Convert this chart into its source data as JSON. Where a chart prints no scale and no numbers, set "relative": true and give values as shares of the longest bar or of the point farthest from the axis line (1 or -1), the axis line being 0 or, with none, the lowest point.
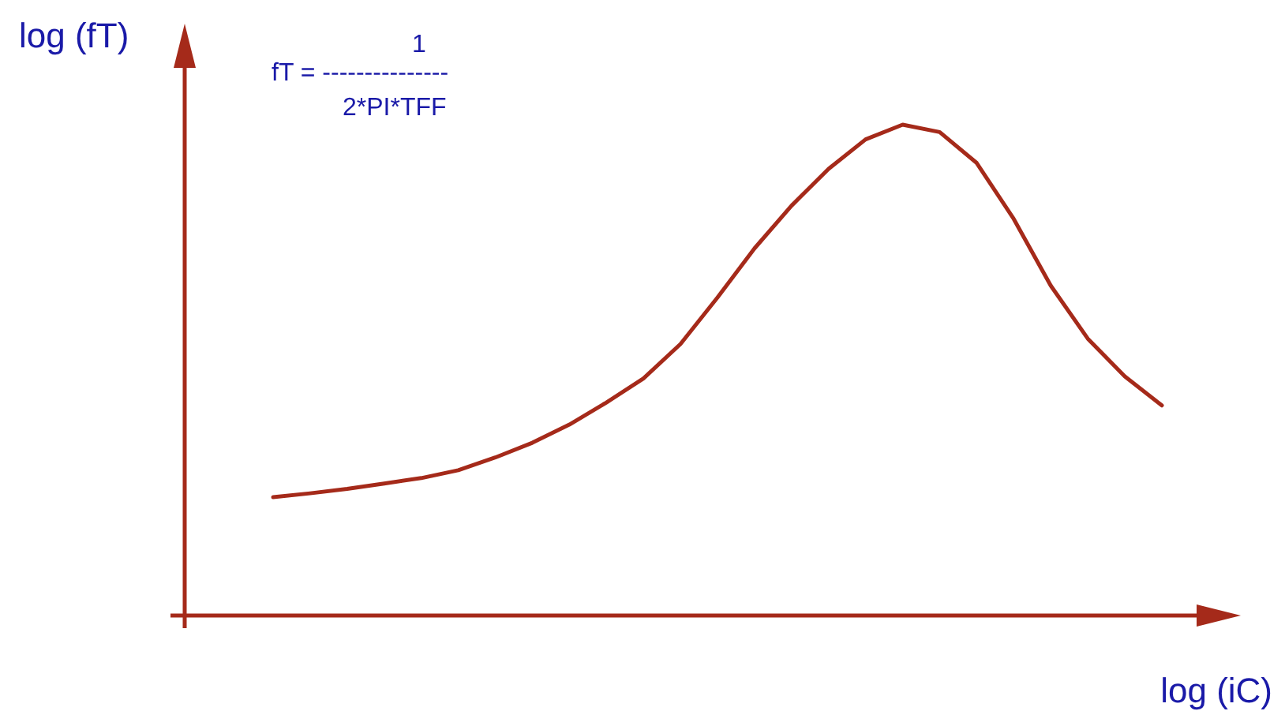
{
  "chart_data": {
    "type": "line",
    "relative": true,
    "xlabel": "log (iC)",
    "ylabel": "log (fT)",
    "annotations": [
      "1",
      "fT = ---------------",
      "2*PI*TFF"
    ],
    "categories": [
      null,
      null,
      null,
      null,
      null,
      null,
      null,
      null,
      null,
      null,
      null,
      null,
      null,
      null,
      null,
      null,
      null,
      null,
      null,
      null,
      null,
      null,
      null,
      null,
      null
    ],
    "series": [
      {
        "color": "#a52a1a",
        "values": [
          0.241,
          0.249,
          0.258,
          0.269,
          0.28,
          0.296,
          0.322,
          0.352,
          0.389,
          0.434,
          0.483,
          0.553,
          0.648,
          0.748,
          0.835,
          0.91,
          0.97,
          1.0,
          0.985,
          0.922,
          0.808,
          0.672,
          0.564,
          0.487,
          0.428
        ]
      }
    ],
    "marker": "none",
    "line_style": "solid",
    "legend": false
  }
}
